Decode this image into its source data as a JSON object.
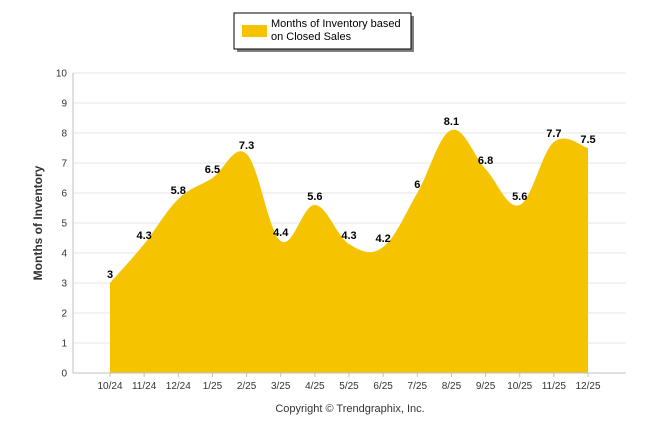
{
  "chart_data": {
    "type": "area",
    "title": "",
    "xlabel": "",
    "ylabel": "Months of Inventory",
    "ylim": [
      0,
      10
    ],
    "yticks": [
      0,
      1,
      2,
      3,
      4,
      5,
      6,
      7,
      8,
      9,
      10
    ],
    "grid": true,
    "legend_position": "top-center",
    "categories": [
      "10/24",
      "11/24",
      "12/24",
      "1/25",
      "2/25",
      "3/25",
      "4/25",
      "5/25",
      "6/25",
      "7/25",
      "8/25",
      "9/25",
      "10/25",
      "11/25",
      "12/25"
    ],
    "series": [
      {
        "name": "Months of Inventory based on Closed Sales",
        "color": "#F5C300",
        "values": [
          3,
          4.3,
          5.8,
          6.5,
          7.3,
          4.4,
          5.6,
          4.3,
          4.2,
          6,
          8.1,
          6.8,
          5.6,
          7.7,
          7.5
        ]
      }
    ]
  },
  "legend": {
    "line1": "Months of Inventory based",
    "line2": "on Closed Sales"
  },
  "footer": "Copyright © Trendgraphix, Inc."
}
